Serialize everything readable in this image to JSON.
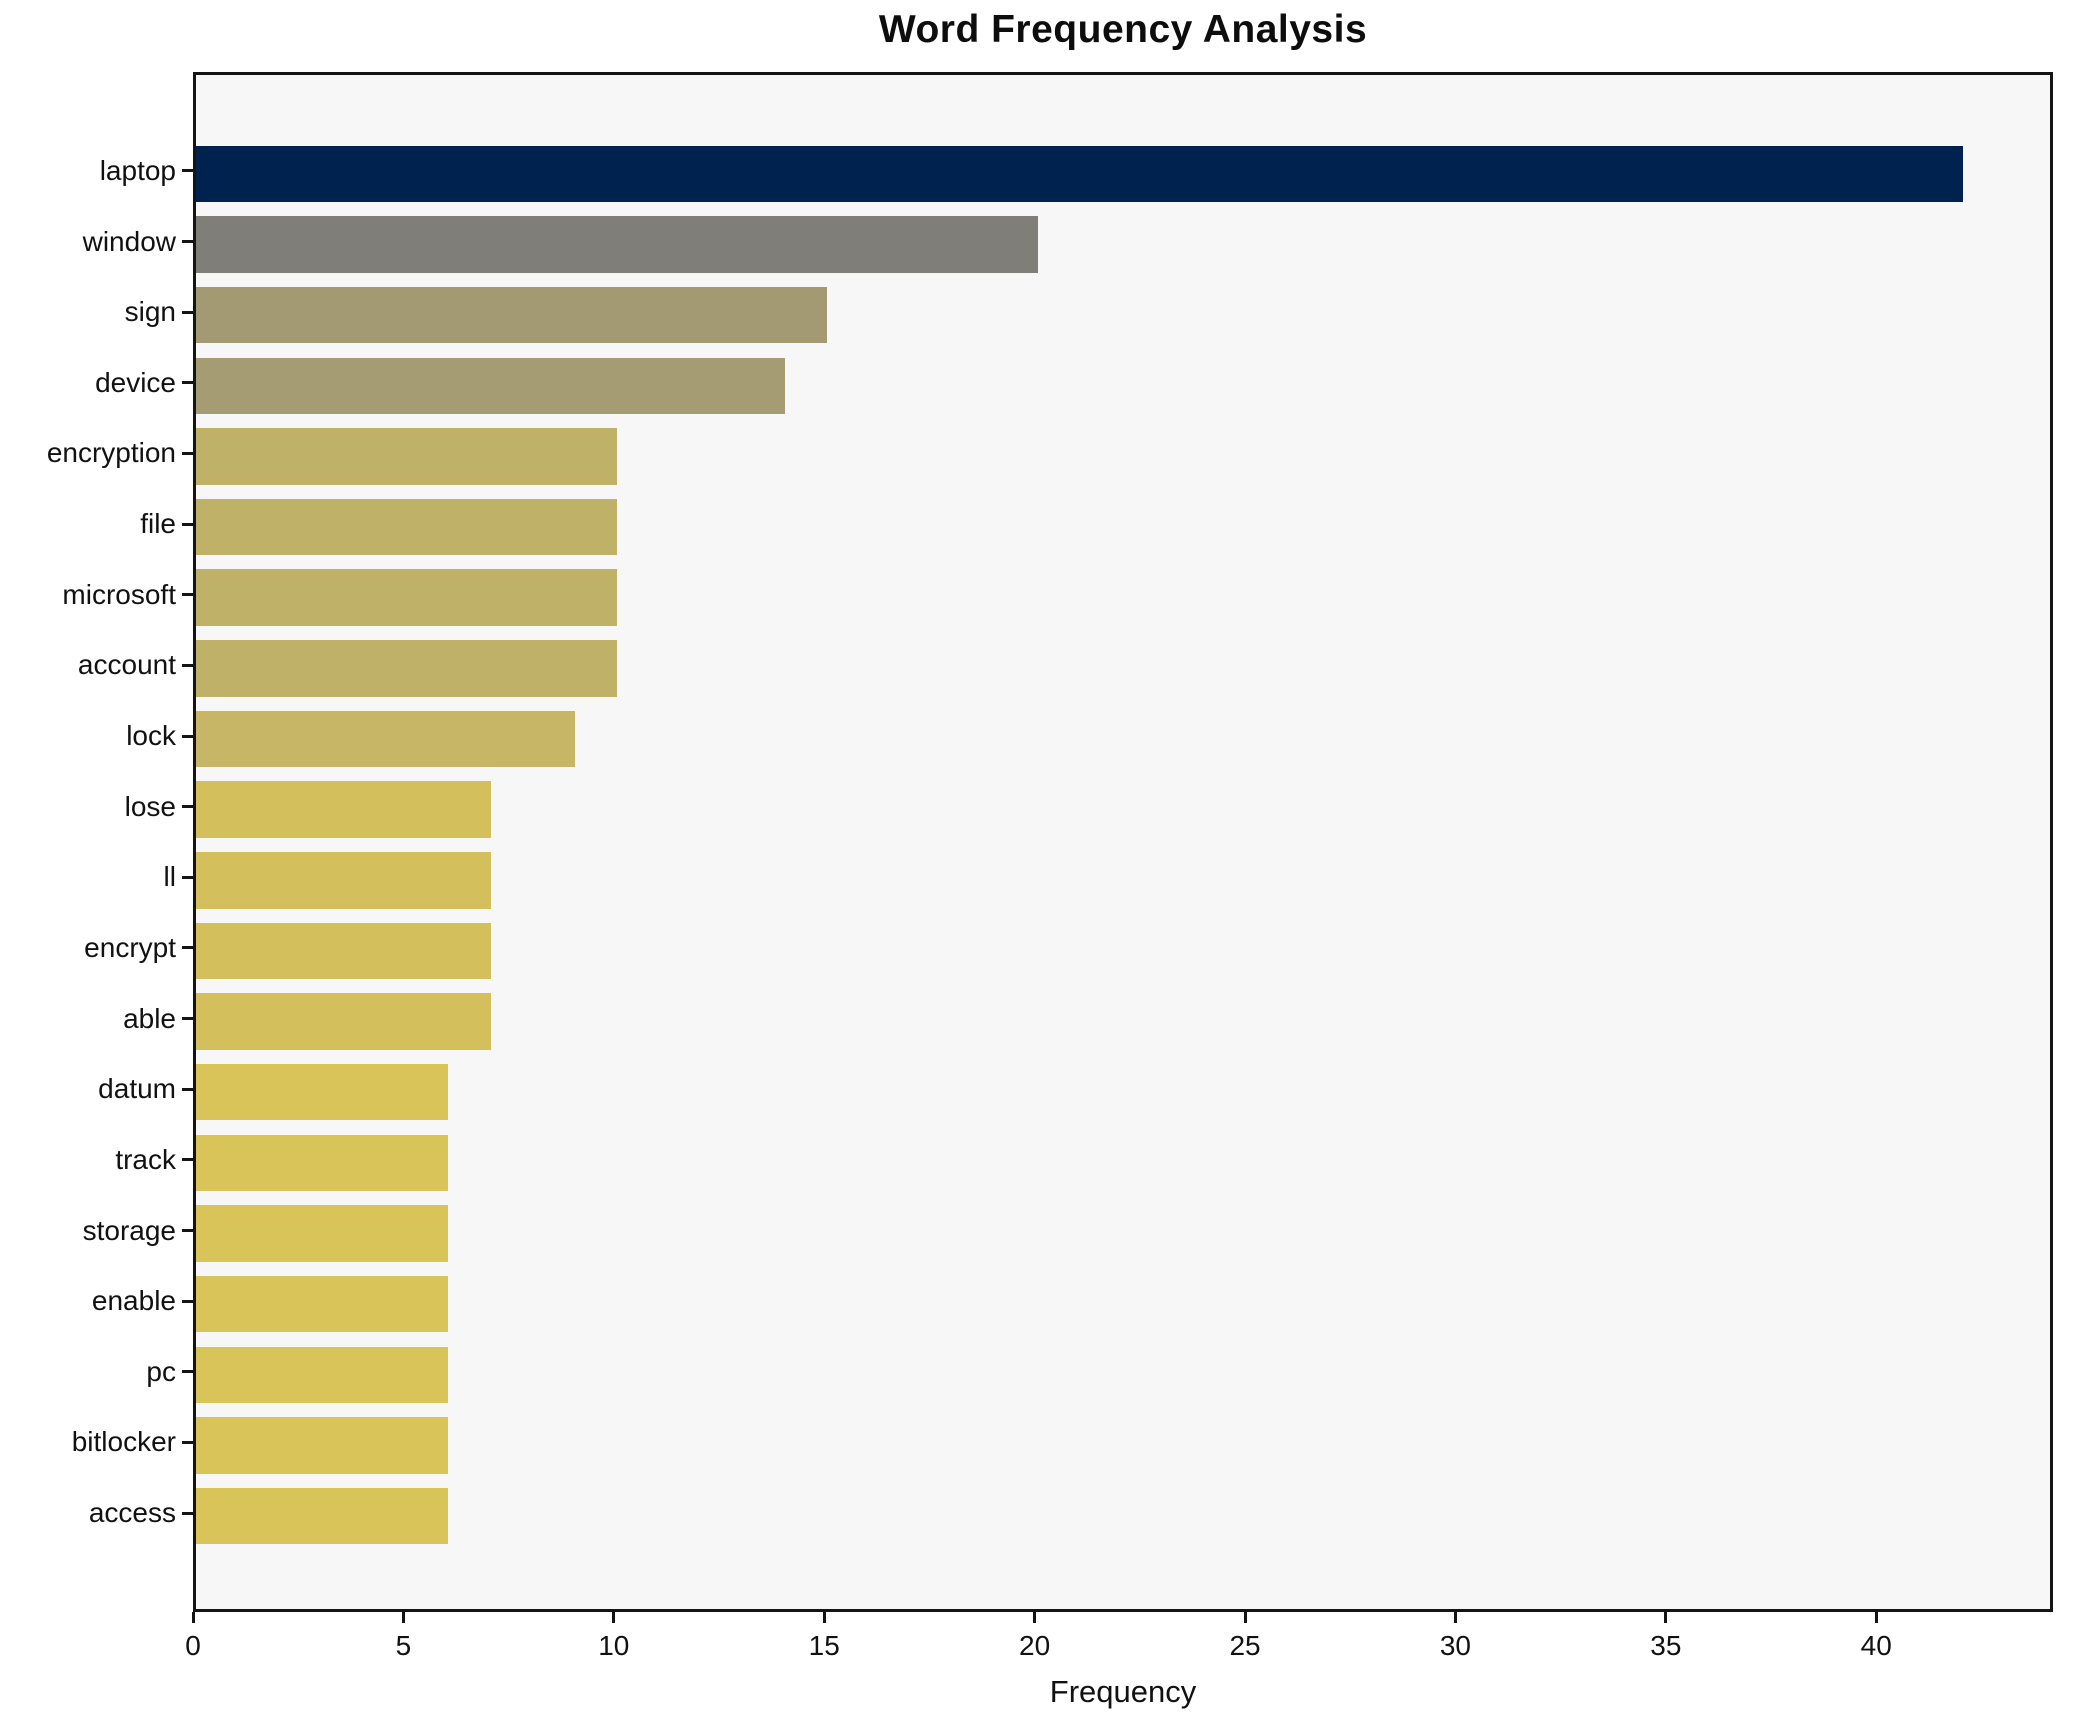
{
  "title": "Word Frequency Analysis",
  "chart_data": {
    "type": "bar",
    "orientation": "horizontal",
    "title": "Word Frequency Analysis",
    "xlabel": "Frequency",
    "ylabel": "",
    "categories": [
      "laptop",
      "window",
      "sign",
      "device",
      "encryption",
      "file",
      "microsoft",
      "account",
      "lock",
      "lose",
      "ll",
      "encrypt",
      "able",
      "datum",
      "track",
      "storage",
      "enable",
      "pc",
      "bitlocker",
      "access"
    ],
    "values": [
      42,
      20,
      15,
      14,
      10,
      10,
      10,
      10,
      9,
      7,
      7,
      7,
      7,
      6,
      6,
      6,
      6,
      6,
      6,
      6
    ],
    "bar_colors": [
      "#00224e",
      "#807e79",
      "#a39a73",
      "#a59c74",
      "#c0b169",
      "#c0b169",
      "#c0b169",
      "#c0b169",
      "#c6b665",
      "#d3c05c",
      "#d3c05c",
      "#d3c05c",
      "#d3c05c",
      "#d9c45a",
      "#d9c45a",
      "#d9c45a",
      "#d9c45a",
      "#d9c45a",
      "#d9c45a",
      "#d9c45a"
    ],
    "xticks": [
      0,
      5,
      10,
      15,
      20,
      25,
      30,
      35,
      40
    ],
    "xlim": [
      0,
      44.2
    ],
    "grid": false,
    "legend": null,
    "plot_background": "#f7f7f8",
    "spine_color": "#141414"
  }
}
